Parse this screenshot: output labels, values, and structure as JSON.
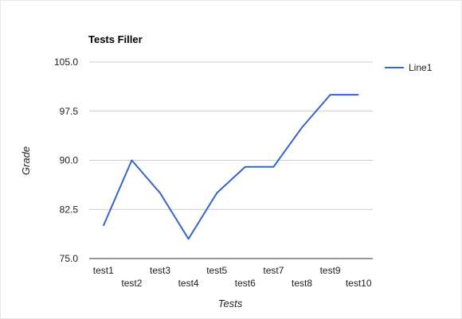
{
  "chart_data": {
    "type": "line",
    "title": "Tests Filler",
    "xlabel": "Tests",
    "ylabel": "Grade",
    "categories": [
      "test1",
      "test2",
      "test3",
      "test4",
      "test5",
      "test6",
      "test7",
      "test8",
      "test9",
      "test10"
    ],
    "series": [
      {
        "name": "Line1",
        "color": "#3366cc",
        "values": [
          80,
          90,
          85,
          78,
          85,
          89,
          89,
          95,
          100,
          100
        ]
      }
    ],
    "ylim": [
      75,
      105
    ],
    "yticks": [
      75,
      82.5,
      90,
      97.5,
      105
    ],
    "ytick_labels": [
      "75.0",
      "82.5",
      "90.0",
      "97.5",
      "105.0"
    ],
    "grid": true,
    "legend_position": "right"
  }
}
